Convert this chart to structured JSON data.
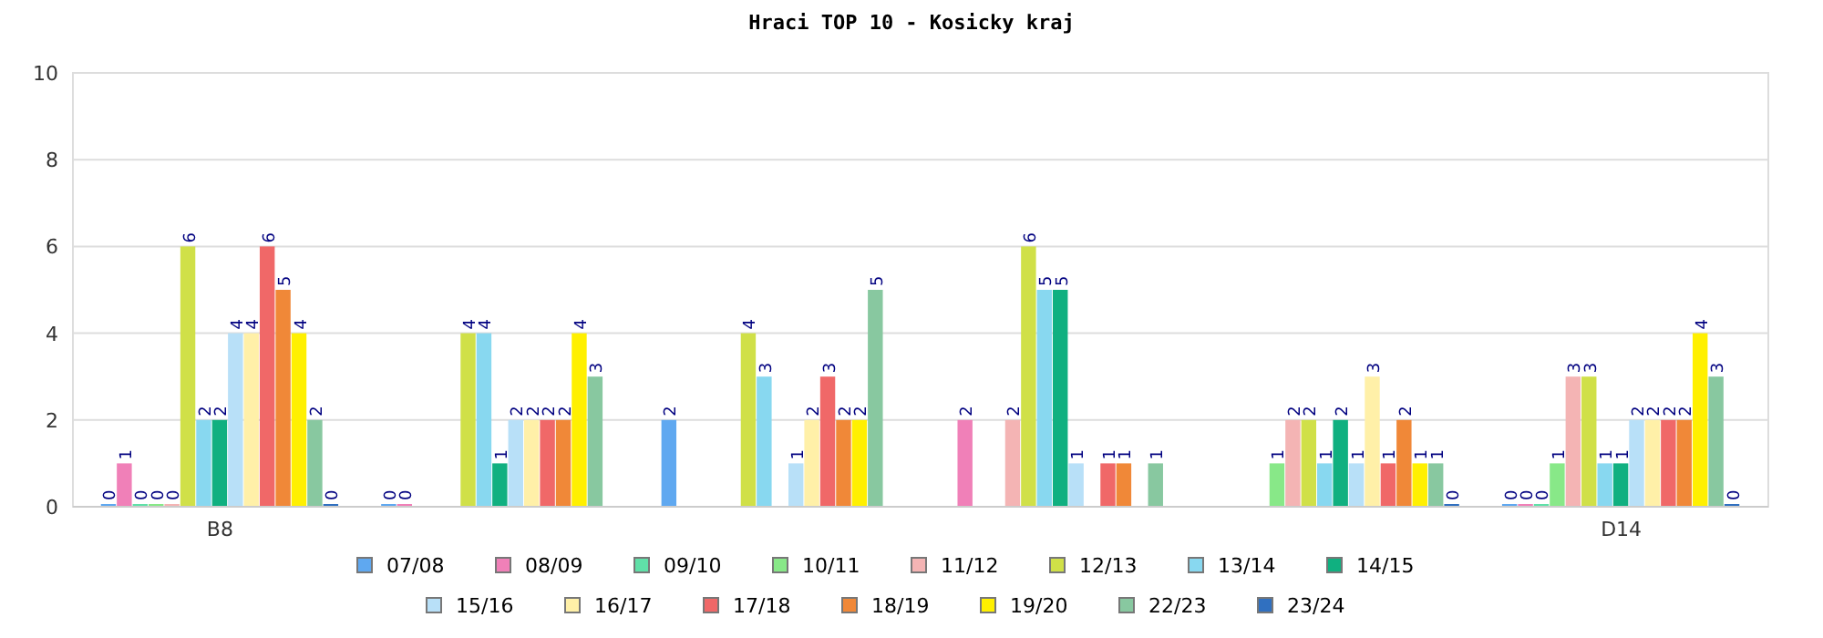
{
  "chart_data": {
    "type": "bar",
    "title": "Hraci TOP 10 - Kosicky kraj",
    "categories": [
      "B8",
      null,
      null,
      null,
      null,
      "D14"
    ],
    "ylim": [
      0,
      10
    ],
    "yticks": [
      0,
      2,
      4,
      6,
      8,
      10
    ],
    "grid": "y",
    "legend": "bottom",
    "data_labels": true,
    "series": [
      {
        "name": "07/08",
        "color": "#5fa8f0",
        "values": [
          0,
          0,
          2,
          null,
          null,
          0
        ]
      },
      {
        "name": "08/09",
        "color": "#f080b8",
        "values": [
          1,
          0,
          null,
          2,
          null,
          0
        ]
      },
      {
        "name": "09/10",
        "color": "#60e0a8",
        "values": [
          0,
          null,
          null,
          null,
          null,
          0
        ]
      },
      {
        "name": "10/11",
        "color": "#88e888",
        "values": [
          0,
          null,
          null,
          null,
          1,
          1
        ]
      },
      {
        "name": "11/12",
        "color": "#f4b4b4",
        "values": [
          0,
          null,
          null,
          2,
          2,
          3
        ]
      },
      {
        "name": "12/13",
        "color": "#d0e048",
        "values": [
          6,
          4,
          4,
          6,
          2,
          3
        ]
      },
      {
        "name": "13/14",
        "color": "#88d8f0",
        "values": [
          2,
          4,
          3,
          5,
          1,
          1
        ]
      },
      {
        "name": "14/15",
        "color": "#10b080",
        "values": [
          2,
          1,
          null,
          5,
          2,
          1
        ]
      },
      {
        "name": "15/16",
        "color": "#b8e0f8",
        "values": [
          4,
          2,
          1,
          1,
          1,
          2
        ]
      },
      {
        "name": "16/17",
        "color": "#fff0a8",
        "values": [
          4,
          2,
          2,
          null,
          3,
          2
        ]
      },
      {
        "name": "17/18",
        "color": "#f06868",
        "values": [
          6,
          2,
          3,
          1,
          1,
          2
        ]
      },
      {
        "name": "18/19",
        "color": "#f08838",
        "values": [
          5,
          2,
          2,
          1,
          2,
          2
        ]
      },
      {
        "name": "19/20",
        "color": "#fff000",
        "values": [
          4,
          4,
          2,
          null,
          1,
          4
        ]
      },
      {
        "name": "22/23",
        "color": "#88c8a0",
        "values": [
          2,
          3,
          5,
          1,
          1,
          3
        ]
      },
      {
        "name": "23/24",
        "color": "#3070c0",
        "values": [
          0,
          null,
          null,
          null,
          0,
          0
        ]
      }
    ]
  }
}
